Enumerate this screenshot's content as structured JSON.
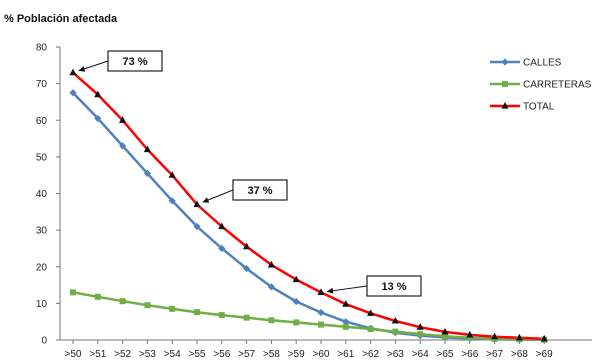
{
  "chart_data": {
    "type": "line",
    "title": "% Población afectada",
    "xlabel": "",
    "ylabel": "",
    "categories": [
      ">50",
      ">51",
      ">52",
      ">53",
      ">54",
      ">55",
      ">56",
      ">57",
      ">58",
      ">59",
      ">60",
      ">61",
      ">62",
      ">63",
      ">64",
      ">65",
      ">66",
      ">67",
      ">68",
      ">69"
    ],
    "ylim": [
      0,
      80
    ],
    "yticks": [
      0,
      10,
      20,
      30,
      40,
      50,
      60,
      70,
      80
    ],
    "grid": false,
    "legend_position": "top-right",
    "series": [
      {
        "name": "CALLES",
        "color": "#4f81bd",
        "marker": "diamond",
        "values": [
          67.5,
          60.5,
          53,
          45.5,
          38,
          31,
          25,
          19.5,
          14.5,
          10.5,
          7.5,
          5,
          3.2,
          2,
          1.2,
          0.7,
          0.4,
          0.2,
          0.1,
          0.05
        ]
      },
      {
        "name": "CARRETERAS",
        "color": "#70ad47",
        "marker": "square",
        "values": [
          13,
          11.8,
          10.6,
          9.5,
          8.5,
          7.6,
          6.8,
          6.1,
          5.4,
          4.8,
          4.2,
          3.6,
          3,
          2.3,
          1.6,
          1,
          0.6,
          0.3,
          0.2,
          0.1
        ]
      },
      {
        "name": "TOTAL",
        "color": "#ff0000",
        "marker": "triangle",
        "values": [
          73,
          67,
          60,
          52,
          45,
          37,
          31,
          25.5,
          20.5,
          16.5,
          13,
          9.8,
          7.3,
          5.2,
          3.5,
          2.2,
          1.4,
          0.9,
          0.6,
          0.3
        ]
      }
    ],
    "annotations": [
      {
        "text": "73 %",
        "series": "TOTAL",
        "category": ">50"
      },
      {
        "text": "37 %",
        "series": "TOTAL",
        "category": ">55"
      },
      {
        "text": "13 %",
        "series": "TOTAL",
        "category": ">60"
      }
    ]
  }
}
